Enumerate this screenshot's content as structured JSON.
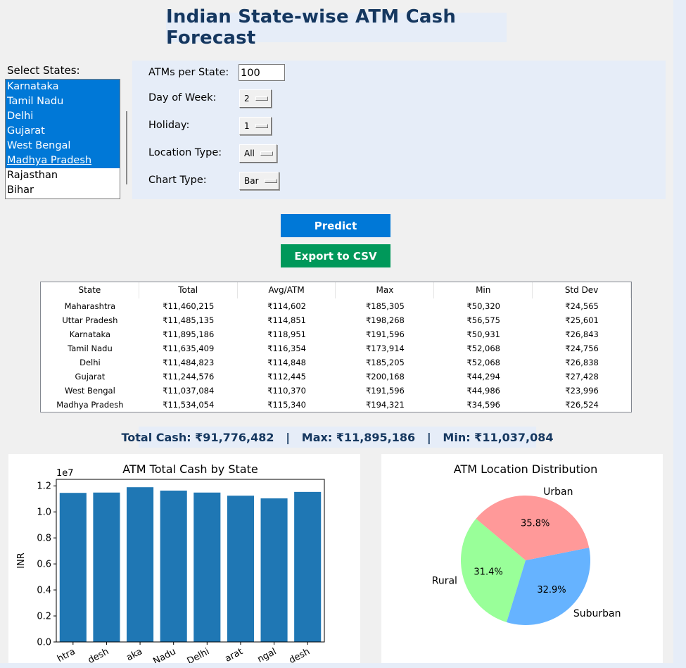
{
  "title": "Indian State-wise ATM Cash Forecast",
  "states": {
    "label": "Select States:",
    "items": [
      {
        "name": "Karnataka",
        "selected": true
      },
      {
        "name": "Tamil Nadu",
        "selected": true
      },
      {
        "name": "Delhi",
        "selected": true
      },
      {
        "name": "Gujarat",
        "selected": true
      },
      {
        "name": "West Bengal",
        "selected": true
      },
      {
        "name": "Madhya Pradesh",
        "selected": true
      },
      {
        "name": "Rajasthan",
        "selected": false
      },
      {
        "name": "Bihar",
        "selected": false
      }
    ]
  },
  "controls": {
    "atms_label": "ATMs per State:",
    "atms_value": "100",
    "day_label": "Day of Week:",
    "day_value": "2",
    "holiday_label": "Holiday:",
    "holiday_value": "1",
    "location_label": "Location Type:",
    "location_value": "All",
    "chart_label": "Chart Type:",
    "chart_value": "Bar"
  },
  "buttons": {
    "predict": "Predict",
    "export": "Export to CSV"
  },
  "colors": {
    "predict": "#0078d7",
    "export": "#00985a",
    "selection": "#0078d7",
    "bar": "#1f77b4",
    "pie_rural": "#99ff99",
    "pie_suburban": "#66b3ff",
    "pie_urban": "#ff9999"
  },
  "table": {
    "columns": [
      "State",
      "Total",
      "Avg/ATM",
      "Max",
      "Min",
      "Std Dev"
    ],
    "rows": [
      [
        "Maharashtra",
        "₹11,460,215",
        "₹114,602",
        "₹185,305",
        "₹50,320",
        "₹24,565"
      ],
      [
        "Uttar Pradesh",
        "₹11,485,135",
        "₹114,851",
        "₹198,268",
        "₹56,575",
        "₹25,601"
      ],
      [
        "Karnataka",
        "₹11,895,186",
        "₹118,951",
        "₹191,596",
        "₹50,931",
        "₹26,843"
      ],
      [
        "Tamil Nadu",
        "₹11,635,409",
        "₹116,354",
        "₹173,914",
        "₹52,068",
        "₹24,756"
      ],
      [
        "Delhi",
        "₹11,484,823",
        "₹114,848",
        "₹185,205",
        "₹52,068",
        "₹26,838"
      ],
      [
        "Gujarat",
        "₹11,244,576",
        "₹112,445",
        "₹200,168",
        "₹44,294",
        "₹27,428"
      ],
      [
        "West Bengal",
        "₹11,037,084",
        "₹110,370",
        "₹191,596",
        "₹44,986",
        "₹23,996"
      ],
      [
        "Madhya Pradesh",
        "₹11,534,054",
        "₹115,340",
        "₹194,321",
        "₹34,596",
        "₹26,524"
      ]
    ]
  },
  "summary": "Total Cash: ₹91,776,482   |   Max: ₹11,895,186   |   Min: ₹11,037,084",
  "chart_data": [
    {
      "type": "bar",
      "title": "ATM Total Cash by State",
      "ylabel": "INR",
      "xlabel": "",
      "scale_label": "1e7",
      "categories": [
        "Maharashtra",
        "Uttar Pradesh",
        "Karnataka",
        "Tamil Nadu",
        "Delhi",
        "Gujarat",
        "West Bengal",
        "Madhya Pradesh"
      ],
      "tick_labels_visible": [
        "htra",
        "desh",
        "aka",
        "Nadu",
        "Delhi",
        "arat",
        "ngal",
        "desh"
      ],
      "values": [
        11460215,
        11485135,
        11895186,
        11635409,
        11484823,
        11244576,
        11037084,
        11534054
      ],
      "ylim": [
        0,
        12500000
      ],
      "yticks": [
        "0.0",
        "0.2",
        "0.4",
        "0.6",
        "0.8",
        "1.0",
        "1.2"
      ],
      "ytick_values": [
        0,
        0.2,
        0.4,
        0.6,
        0.8,
        1.0,
        1.2
      ],
      "grid": false
    },
    {
      "type": "pie",
      "title": "ATM Location Distribution",
      "labels": [
        "Rural",
        "Suburban",
        "Urban"
      ],
      "values": [
        31.4,
        32.9,
        35.8
      ],
      "pct_labels": [
        "31.4%",
        "32.9%",
        "35.8%"
      ]
    }
  ]
}
